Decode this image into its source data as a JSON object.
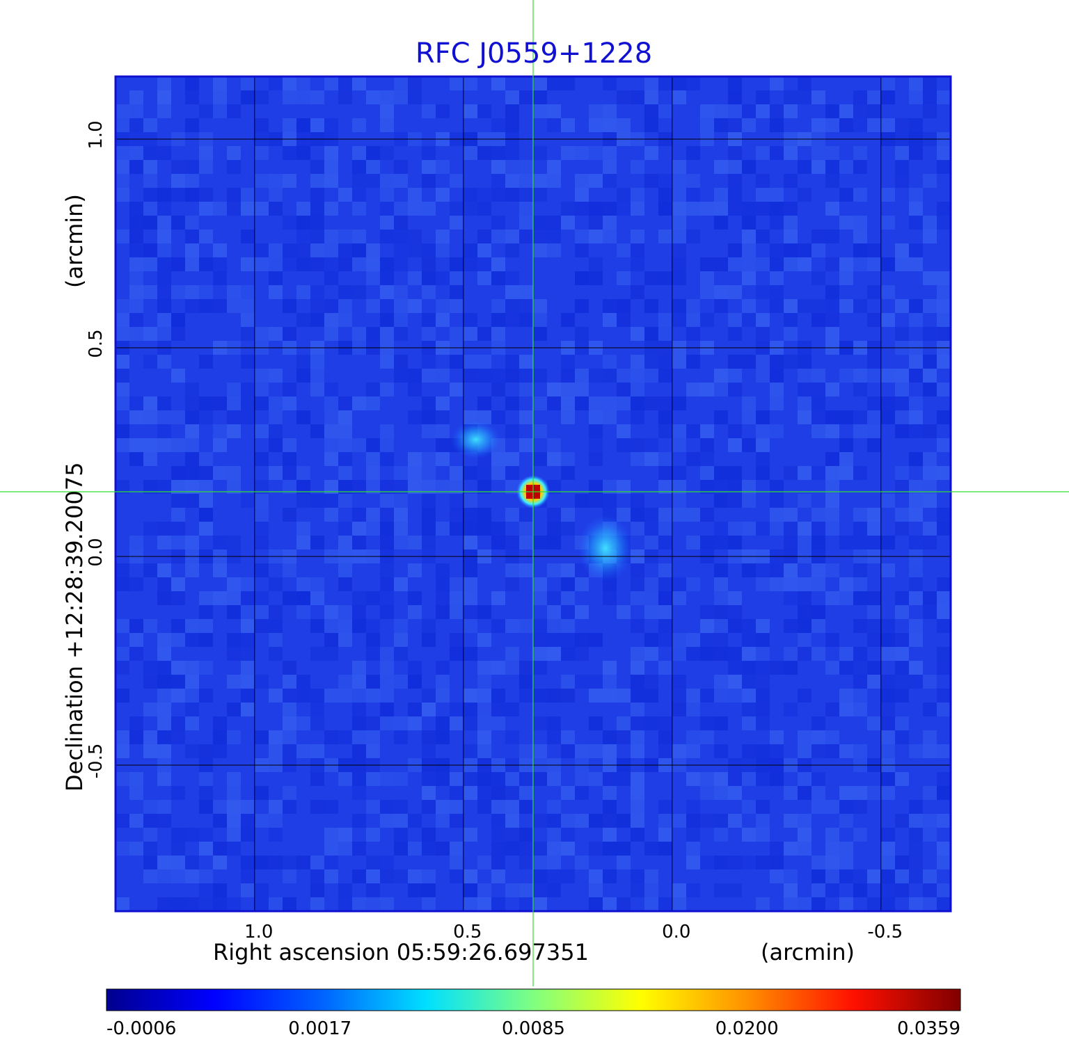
{
  "chart_data": {
    "type": "heatmap",
    "title": "RFC J0559+1228",
    "xlabel": "Right ascension  05:59:26.697351",
    "x_unit": "(arcmin)",
    "ylabel": "Declination  +12:28:39.20075",
    "y_unit": "(arcmin)",
    "x_axis": {
      "reversed": true,
      "xlim": [
        1.333,
        -0.667
      ],
      "ticks": [
        1.0,
        0.5,
        0.0,
        -0.5
      ],
      "tick_labels": [
        "1.0",
        "0.5",
        "0.0",
        "-0.5"
      ]
    },
    "y_axis": {
      "ylim": [
        -0.85,
        1.15
      ],
      "ticks": [
        -0.5,
        0.0,
        0.5,
        1.0
      ],
      "tick_labels": [
        "-0.5",
        "0.0",
        "0.5",
        "1.0"
      ]
    },
    "grid": true,
    "crosshair": {
      "x": 0.333,
      "y": 0.155,
      "color": "#33dd33"
    },
    "sources": [
      {
        "x": 0.333,
        "y": 0.155,
        "peak": 0.0359
      },
      {
        "x": 0.16,
        "y": 0.02,
        "peak": 0.0035
      },
      {
        "x": 0.47,
        "y": 0.28,
        "peak": 0.0022
      }
    ],
    "colorbar": {
      "colormap": "jet",
      "tick_labels": [
        "-0.0006",
        "0.0017",
        "0.0085",
        "0.0200",
        "0.0359"
      ],
      "tick_values": [
        -0.0006,
        0.0017,
        0.0085,
        0.02,
        0.0359
      ]
    }
  },
  "colors": {
    "title": "#1010d0",
    "grid": "#000000",
    "crosshair": "#33dd33",
    "background_map": "#1f3ee6"
  }
}
